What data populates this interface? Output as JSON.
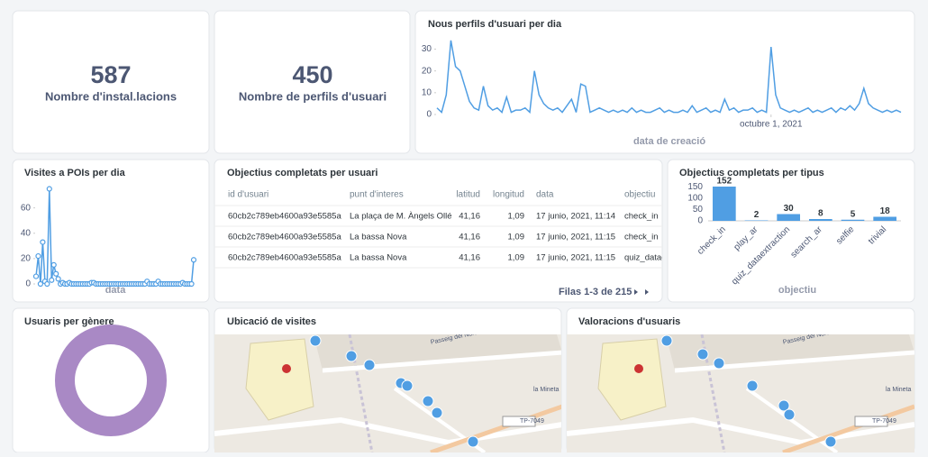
{
  "stats": [
    {
      "value": 587,
      "label": "Nombre d'instal.lacions"
    },
    {
      "value": 450,
      "label": "Nombre de perfils d'usuari"
    }
  ],
  "chart_data": [
    {
      "type": "line",
      "title": "Nous perfils d'usuari per dia",
      "x_label": "data de creació",
      "color": "#509ee3",
      "values": [
        3,
        1,
        9,
        34,
        22,
        20,
        13,
        6,
        3,
        2,
        13,
        4,
        2,
        3,
        1,
        8,
        1,
        2,
        2,
        3,
        1,
        20,
        9,
        5,
        3,
        2,
        3,
        1,
        4,
        7,
        1,
        14,
        13,
        1,
        2,
        3,
        2,
        1,
        2,
        1,
        2,
        1,
        3,
        1,
        2,
        1,
        1,
        2,
        3,
        1,
        2,
        1,
        1,
        2,
        1,
        4,
        1,
        2,
        3,
        1,
        2,
        1,
        7,
        2,
        3,
        1,
        2,
        2,
        3,
        1,
        2,
        1,
        31,
        9,
        3,
        2,
        1,
        2,
        1,
        2,
        3,
        1,
        2,
        1,
        2,
        3,
        1,
        3,
        2,
        4,
        2,
        5,
        12,
        5,
        3,
        2,
        1,
        2,
        1,
        2,
        1
      ],
      "ylim": [
        0,
        36
      ],
      "yticks": [
        0,
        10,
        20,
        30
      ],
      "xlim": [
        0,
        100
      ],
      "xticks": [
        {
          "value": 72,
          "label": "octubre 1, 2021"
        }
      ]
    },
    {
      "type": "line",
      "title": "Visites a POIs per dia",
      "x_label": "data",
      "color": "#509ee3",
      "markers": true,
      "values": [
        6,
        22,
        0,
        33,
        2,
        0,
        75,
        3,
        15,
        8,
        4,
        0,
        1,
        0,
        0,
        1,
        0,
        0,
        0,
        0,
        0,
        0,
        0,
        0,
        0,
        1,
        1,
        0,
        0,
        0,
        0,
        0,
        0,
        0,
        0,
        0,
        0,
        0,
        0,
        0,
        0,
        0,
        0,
        0,
        0,
        0,
        0,
        0,
        0,
        0,
        2,
        0,
        0,
        0,
        0,
        2,
        0,
        0,
        0,
        0,
        0,
        0,
        0,
        0,
        0,
        0,
        1,
        0,
        0,
        0,
        0,
        19
      ],
      "ylim": [
        0,
        64
      ],
      "yticks": [
        0,
        20,
        40,
        60
      ],
      "xlim": [
        0,
        71
      ]
    },
    {
      "type": "bar",
      "title": "Objectius completats per tipus",
      "x_label": "objectiu",
      "color": "#509ee3",
      "categories": [
        "check_in",
        "play_ar",
        "quiz_dataextraction",
        "search_ar",
        "selfie",
        "trivial"
      ],
      "values": [
        152,
        2,
        30,
        8,
        5,
        18
      ],
      "ylim": [
        0,
        160
      ],
      "yticks": [
        0,
        50,
        100,
        150
      ]
    }
  ],
  "table": {
    "title": "Objectius completats per usuari",
    "columns": [
      "id d'usuari",
      "punt d'interes",
      "latitud",
      "longitud",
      "data",
      "objectiu"
    ],
    "rows": [
      [
        "60cb2c789eb4600a93e5585a",
        "La plaça de M. Àngels Ollé",
        "41,16",
        "1,09",
        "17 junio, 2021, 11:14",
        "check_in"
      ],
      [
        "60cb2c789eb4600a93e5585a",
        "La bassa Nova",
        "41,16",
        "1,09",
        "17 junio, 2021, 11:15",
        "check_in"
      ],
      [
        "60cb2c789eb4600a93e5585a",
        "La bassa Nova",
        "41,16",
        "1,09",
        "17 junio, 2021, 11:15",
        "quiz_dataextraction"
      ]
    ],
    "footer": "Filas 1-3 de 215"
  },
  "donut": {
    "title": "Usuaris per gènere"
  },
  "maps": [
    {
      "title": "Ubicació de visites",
      "labels": [
        "Passeig del Nord",
        "TP-7049",
        "la Mineta"
      ]
    },
    {
      "title": "Valoracions d'usuaris",
      "labels": [
        "Passeig del Nord",
        "TP-7049",
        "la Mineta"
      ]
    }
  ]
}
